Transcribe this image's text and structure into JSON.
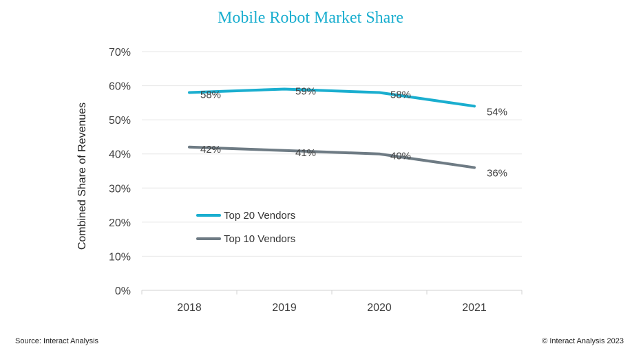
{
  "chart_data": {
    "type": "line",
    "title": "Mobile Robot Market Share",
    "ylabel": "Combined Share of Revenues",
    "xlabel": "",
    "categories": [
      "2018",
      "2019",
      "2020",
      "2021"
    ],
    "ylim": [
      0,
      70
    ],
    "yticks": [
      "0%",
      "10%",
      "20%",
      "30%",
      "40%",
      "50%",
      "60%",
      "70%"
    ],
    "grid": true,
    "legend_position": "center-left",
    "series": [
      {
        "name": "Top 20 Vendors",
        "color": "#1aaecf",
        "values": [
          58,
          59,
          58,
          54
        ],
        "labels": [
          "58%",
          "59%",
          "58%",
          "54%"
        ]
      },
      {
        "name": "Top 10 Vendors",
        "color": "#6e7b84",
        "values": [
          42,
          41,
          40,
          36
        ],
        "labels": [
          "42%",
          "41%",
          "40%",
          "36%"
        ]
      }
    ],
    "title_color": "#1aaecf"
  },
  "footer": {
    "source": "Source: Interact Analysis",
    "copyright": "© Interact Analysis 2023"
  }
}
